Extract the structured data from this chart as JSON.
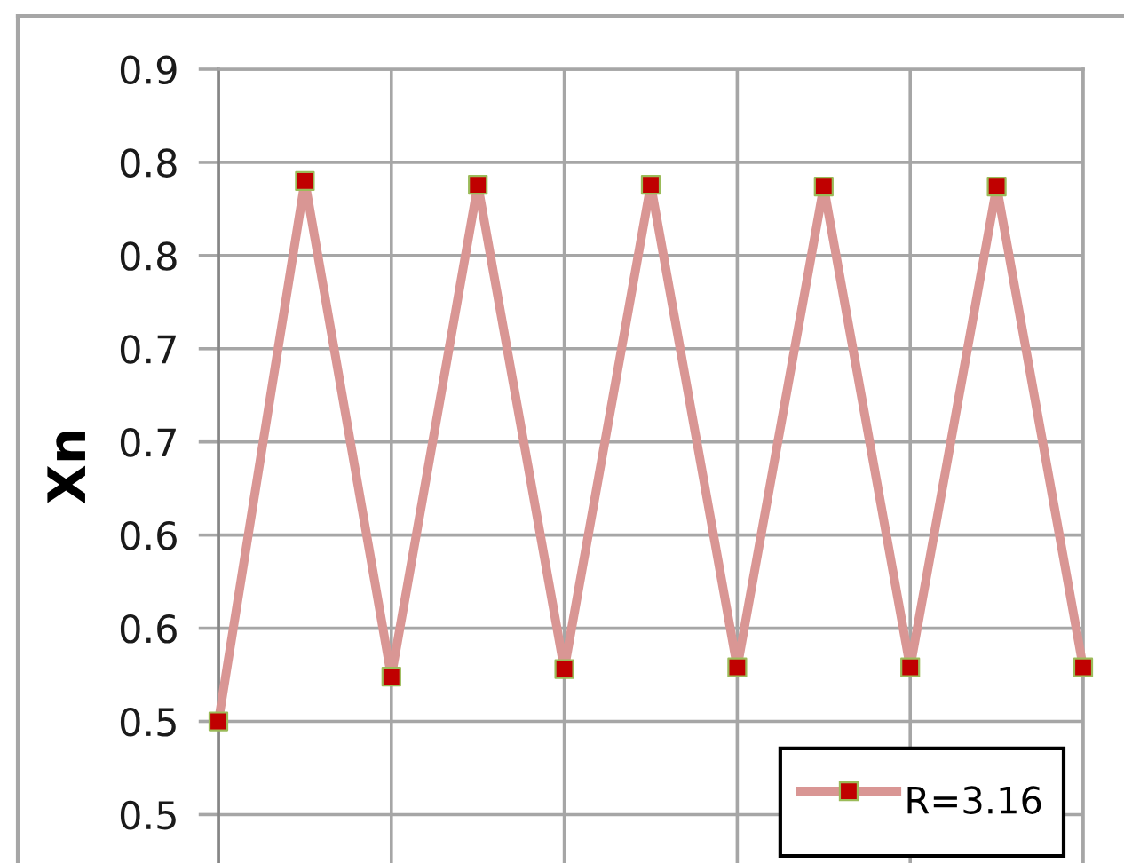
{
  "chart_data": {
    "type": "line",
    "ylabel": "Xn",
    "categories": [
      null,
      null,
      null,
      null,
      null,
      null,
      null,
      null,
      null,
      null,
      null
    ],
    "series": [
      {
        "name": "R=3.16",
        "color": "#d99694",
        "colors": [
          "#c00000",
          "#c00000",
          "#c00000",
          "#c00000",
          "#c00000",
          "#c00000",
          "#c00000",
          "#c00000",
          "#c00000",
          "#c00000",
          "#c00000"
        ],
        "values": [
          0.5,
          0.79,
          0.524,
          0.788,
          0.528,
          0.788,
          0.529,
          0.787,
          0.529,
          0.787,
          0.529
        ]
      }
    ],
    "ylim": [
      0.424,
      0.85
    ],
    "yticks": [
      {
        "value": 0.45,
        "label": "0.5"
      },
      0.5,
      {
        "value": 0.55,
        "label": "0.6"
      },
      0.6,
      {
        "value": 0.65,
        "label": "0.7"
      },
      0.7,
      {
        "value": 0.75,
        "label": "0.8"
      },
      0.8,
      {
        "value": 0.85,
        "label": "0.9"
      }
    ],
    "grid": true,
    "legend": "bottom right",
    "marker": "square",
    "line_style": "solid",
    "tick_labels": "y"
  }
}
